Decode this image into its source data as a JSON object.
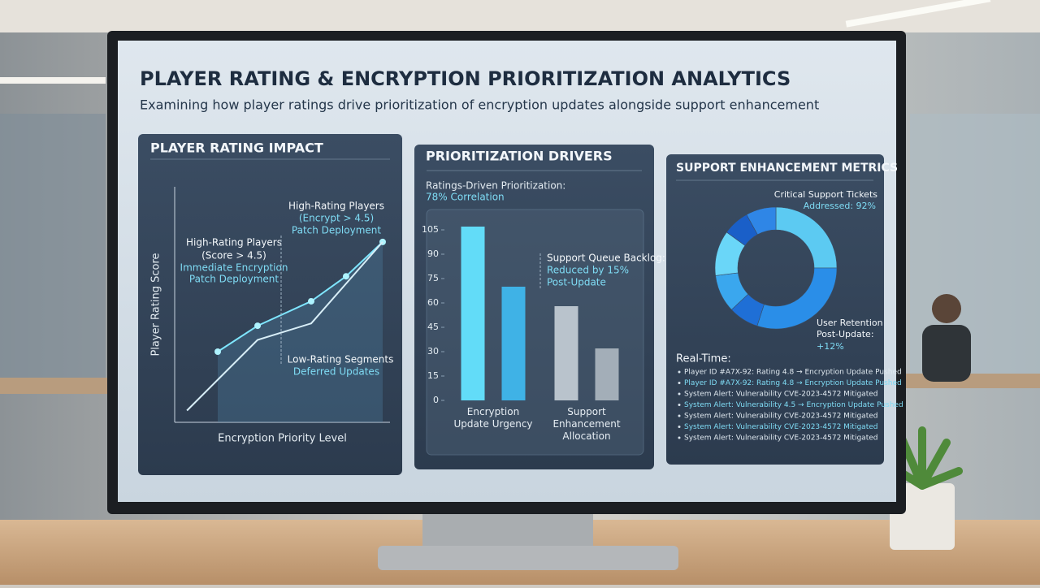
{
  "header": {
    "title": "PLAYER RATING & ENCRYPTION PRIORITIZATION ANALYTICS",
    "subtitle": "Examining how player ratings drive prioritization of encryption updates alongside support enhancement"
  },
  "chart_data": [
    {
      "type": "line",
      "title": "PLAYER RATING IMPACT",
      "x_label": "Encryption Priority Level",
      "y_label": "Player Rating Score",
      "xlim": [
        0,
        10
      ],
      "ylim": [
        0,
        10
      ],
      "series": [
        {
          "color": "#7fe6ff",
          "x": [
            2.0,
            3.85,
            6.34,
            7.96,
            9.66
          ],
          "values": [
            3.0,
            4.1,
            5.14,
            6.2,
            7.66
          ]
        },
        {
          "color": "#d8eef7",
          "x": [
            0.57,
            3.85,
            6.34,
            9.66
          ],
          "values": [
            0.5,
            3.5,
            4.2,
            7.66
          ]
        }
      ],
      "annotations": [
        "High-Rating Players",
        "(Score > 4.5)",
        "Immediate Encryption",
        "Patch Deployment",
        "High-Rating Players",
        "(Encrypt > 4.5)",
        "Patch Deployment",
        "Low-Rating Segments",
        "Deferred Updates"
      ]
    },
    {
      "type": "bar",
      "title": "PRIORITIZATION DRIVERS",
      "subtitle": "Ratings-Driven Prioritization:",
      "highlight": "78% Correlation",
      "categories": [
        "Encryption Update Urgency",
        "Support Enhancement Allocation"
      ],
      "ylim": [
        0,
        110
      ],
      "yticks": [
        0,
        15,
        30,
        45,
        60,
        75,
        90,
        105
      ],
      "series": [
        {
          "colors": [
            "#62dcf8",
            "#b9c3cc"
          ],
          "values": [
            107,
            58
          ]
        },
        {
          "colors": [
            "#3fb2e6",
            "#a3aeb8"
          ],
          "values": [
            70,
            32
          ]
        }
      ],
      "annotations": [
        "Support Queue Backlog:",
        "Reduced by 15%",
        "Post-Update"
      ]
    },
    {
      "type": "donut",
      "title": "SUPPORT ENHANCEMENT METRICS",
      "values": [
        25,
        30,
        8,
        10,
        12,
        7,
        8
      ],
      "colors": [
        "#5ccaf2",
        "#2a8ee8",
        "#1f6fd6",
        "#3aa7ee",
        "#6ad6f8",
        "#1a5fc8",
        "#2f86e6"
      ],
      "annotations": [
        "Critical Support Tickets",
        "Addressed: 92%",
        "User Retention",
        "Post-Update:",
        "+12%"
      ]
    }
  ],
  "feed": {
    "title": "Real-Time:",
    "items": [
      "Player ID #A7X-92: Rating 4.8 → Encryption Update Pushed",
      "Player ID #A7X-92: Rating 4.8 → Encryption Update Pushed",
      "System Alert: Vulnerability CVE-2023-4572 Mitigated",
      "System Alert: Vulnerability 4.5 → Encryption Update Pushed",
      "System Alert: Vulnerability CVE-2023-4572 Mitigated",
      "System Alert: Vulnerability CVE-2023-4572 Mitigated",
      "System Alert: Vulnerability CVE-2023-4572 Mitigated"
    ]
  }
}
